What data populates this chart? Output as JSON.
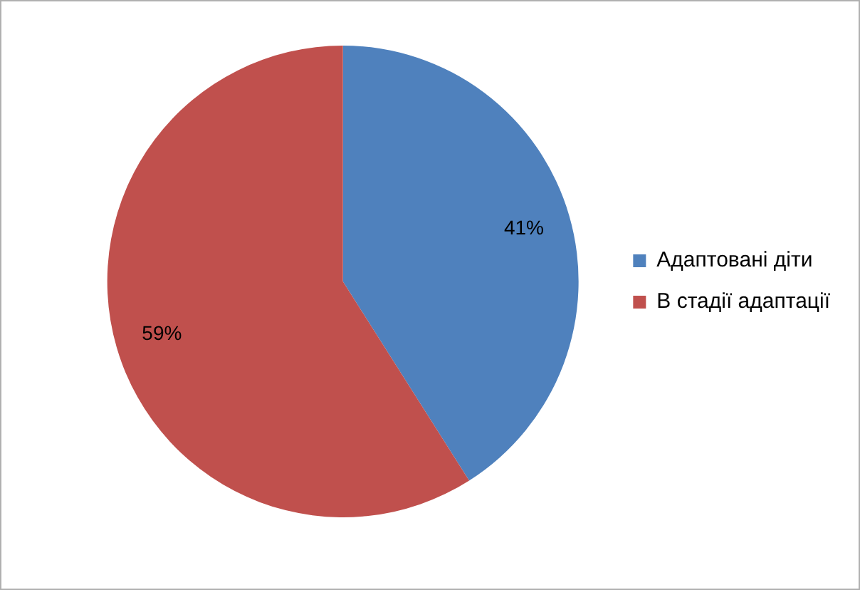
{
  "chart_data": {
    "type": "pie",
    "categories": [
      "Адаптовані діти",
      "В стадії адаптації"
    ],
    "values": [
      41,
      59
    ],
    "colors": [
      "#4f81bd",
      "#c0504d"
    ],
    "value_labels": [
      "41%",
      "59%"
    ],
    "legend": "right"
  }
}
